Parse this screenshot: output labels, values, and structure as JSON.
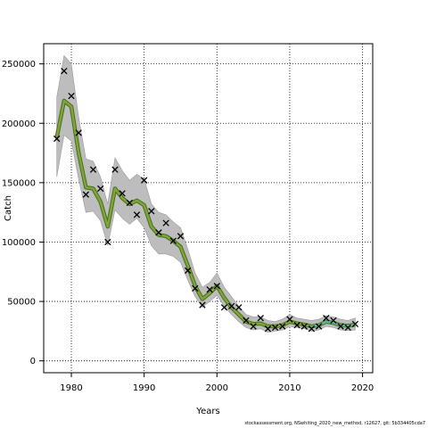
{
  "chart_data": {
    "type": "line",
    "xlabel": "Years",
    "ylabel": "Catch",
    "xlim": [
      1976.2,
      2021.4
    ],
    "ylim": [
      -10000,
      267000
    ],
    "x_ticks": [
      1980,
      1990,
      2000,
      2010,
      2020
    ],
    "y_ticks": [
      0,
      50000,
      100000,
      150000,
      200000,
      250000
    ],
    "y_tick_labels": [
      "0",
      "50000",
      "100000",
      "150000",
      "200000",
      "250000"
    ],
    "grid": true,
    "colors": {
      "band": "#bdbdbd",
      "line_fill": "#7ea63a",
      "line_edge": "#4a6b1c",
      "line_recent": "#5fb0a0",
      "observed": "#000000"
    },
    "years": [
      1978,
      1979,
      1980,
      1981,
      1982,
      1983,
      1984,
      1985,
      1986,
      1987,
      1988,
      1989,
      1990,
      1991,
      1992,
      1993,
      1994,
      1995,
      1996,
      1997,
      1998,
      1999,
      2000,
      2001,
      2002,
      2003,
      2004,
      2005,
      2006,
      2007,
      2008,
      2009,
      2010,
      2011,
      2012,
      2013,
      2014,
      2015,
      2016,
      2017,
      2018,
      2019
    ],
    "estimated": [
      188000,
      219000,
      214000,
      175000,
      146000,
      145000,
      134000,
      113000,
      145000,
      137000,
      132000,
      135000,
      131000,
      113000,
      106000,
      105000,
      101000,
      96000,
      80000,
      63000,
      52000,
      57000,
      63000,
      53000,
      45000,
      39000,
      33000,
      31000,
      31500,
      29000,
      29000,
      30000,
      33000,
      31500,
      30500,
      29000,
      30000,
      33000,
      32000,
      30000,
      29500,
      30500
    ],
    "lower": [
      155000,
      190000,
      185000,
      153000,
      125000,
      126000,
      118000,
      97000,
      127000,
      120000,
      115000,
      120000,
      112000,
      97000,
      90000,
      90000,
      88000,
      83000,
      68000,
      54000,
      45000,
      50000,
      55000,
      46000,
      39000,
      33000,
      28000,
      26000,
      27000,
      24000,
      25000,
      26000,
      29000,
      28000,
      27000,
      25000,
      26000,
      29000,
      28000,
      26000,
      25500,
      26000
    ],
    "upper": [
      222000,
      257000,
      250000,
      205000,
      170000,
      168000,
      155000,
      132000,
      171000,
      160000,
      152000,
      157000,
      153000,
      132000,
      125000,
      123000,
      117000,
      112000,
      94000,
      74000,
      62000,
      66000,
      74000,
      62000,
      54000,
      46000,
      39000,
      37000,
      37000,
      34000,
      33000,
      35000,
      39000,
      36000,
      35000,
      34000,
      35000,
      38000,
      37000,
      35000,
      34000,
      36000
    ],
    "observed": [
      187000,
      244000,
      223000,
      192000,
      140000,
      161000,
      145000,
      100000,
      161000,
      141000,
      133000,
      123000,
      152000,
      126000,
      108000,
      116000,
      101000,
      105000,
      76000,
      61000,
      47000,
      60000,
      63000,
      45000,
      46000,
      45000,
      34000,
      29000,
      36000,
      27000,
      28000,
      29000,
      35000,
      30000,
      29000,
      27000,
      29000,
      36000,
      34000,
      29000,
      28000,
      31000
    ]
  },
  "footnote": "stockassessment.org, NSwhiting_2020_new_method, r12627, git: 5b334405cda7"
}
